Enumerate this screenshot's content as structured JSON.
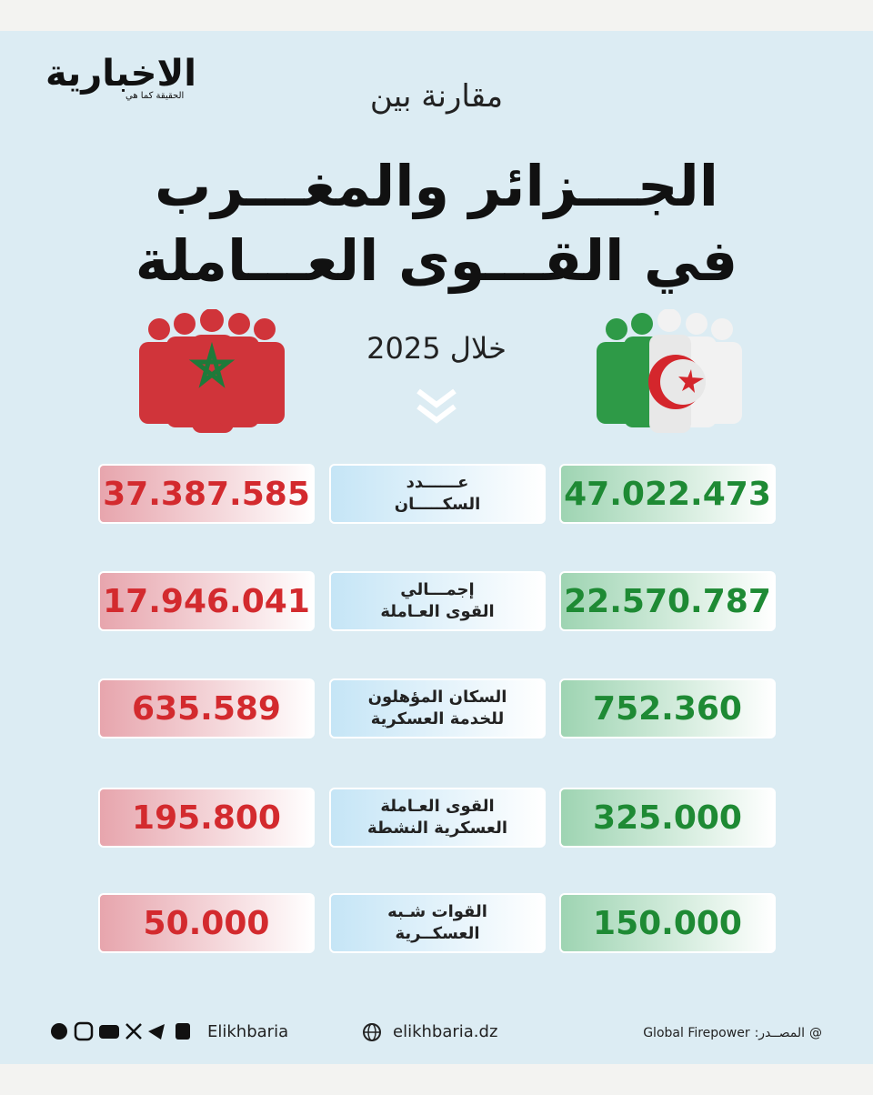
{
  "logo": {
    "name": "الاخبارية",
    "tagline": "الحقيقة كما هي"
  },
  "header": {
    "intro": "مقارنة بين",
    "title_lines": [
      "الجـــزائر والمغـــرب",
      "في القـــوى العـــاملة"
    ],
    "period": "خلال 2025"
  },
  "rows": [
    {
      "label": [
        "عــــــدد",
        "السكـــــان"
      ],
      "algeria": "47.022.473",
      "morocco": "37.387.585"
    },
    {
      "label": [
        "إجمـــالي",
        "القوى العـاملة"
      ],
      "algeria": "22.570.787",
      "morocco": "17.946.041"
    },
    {
      "label": [
        "السكان المؤهلون",
        "للخدمة العسكرية"
      ],
      "algeria": "752.360",
      "morocco": "635.589"
    },
    {
      "label": [
        "القوى العـاملة",
        "العسكرية النشطة"
      ],
      "algeria": "325.000",
      "morocco": "195.800"
    },
    {
      "label": [
        "القوات شـبه",
        "العسكــرية"
      ],
      "algeria": "150.000",
      "morocco": "50.000"
    }
  ],
  "footer": {
    "handle": "Elikhbaria",
    "website": "elikhbaria.dz",
    "source_label": "المصــدر:",
    "source": "Global Firepower",
    "at": "@"
  }
}
